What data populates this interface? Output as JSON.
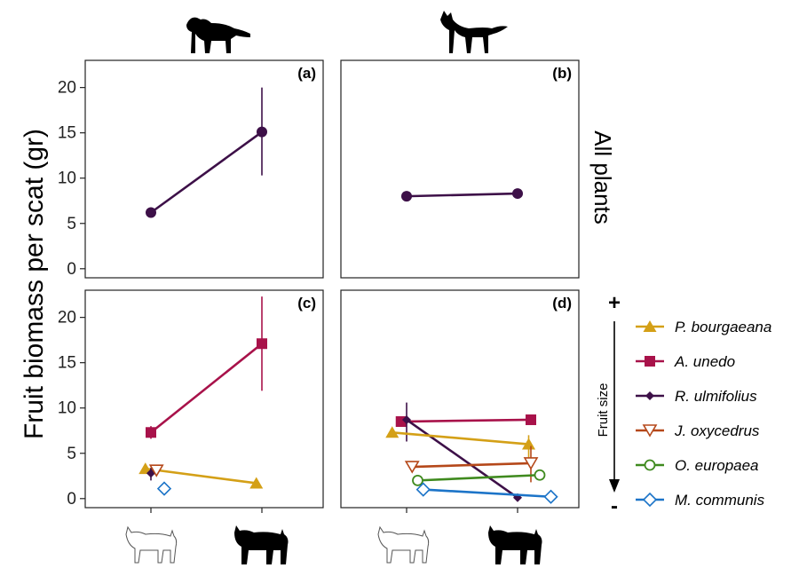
{
  "figure": {
    "y_axis_title": "Fruit biomass per scat (gr)",
    "row_label_top": "All plants",
    "fruit_size_label": "Fruit size",
    "fruit_size_plus": "+",
    "fruit_size_minus": "-",
    "icon_names": [
      "marten-silhouette-icon",
      "fox-silhouette-icon",
      "lynx-outline-icon",
      "lynx-silhouette-icon"
    ]
  },
  "chart_data": {
    "type": "line",
    "ylim": [
      -1,
      23
    ],
    "y_ticks": [
      0,
      5,
      10,
      15,
      20
    ],
    "grid": false,
    "legend_position": "right",
    "series_meta": [
      {
        "name": "P. bourgaeana",
        "color": "#d4a017",
        "marker": "triangle"
      },
      {
        "name": "A. unedo",
        "color": "#a8124a",
        "marker": "square"
      },
      {
        "name": "R. ulmifolius",
        "color": "#3d1048",
        "marker": "diamond"
      },
      {
        "name": "J. oxycedrus",
        "color": "#b5481a",
        "marker": "triangle-down-open"
      },
      {
        "name": "O. europaea",
        "color": "#3f8a1e",
        "marker": "circle-open"
      },
      {
        "name": "M. communis",
        "color": "#1c74c8",
        "marker": "diamond-open"
      }
    ],
    "panels": [
      {
        "tag": "(a)",
        "series": [
          {
            "name": "All plants",
            "color": "#3d1048",
            "marker": "circle",
            "x": [
              1,
              2
            ],
            "y": [
              6.2,
              15.1
            ],
            "err": [
              [
                6.2,
                6.2
              ],
              [
                10.3,
                20.0
              ]
            ]
          }
        ]
      },
      {
        "tag": "(b)",
        "series": [
          {
            "name": "All plants",
            "color": "#3d1048",
            "marker": "circle",
            "x": [
              1,
              2
            ],
            "y": [
              8.0,
              8.3
            ],
            "err": [
              [
                8.0,
                8.0
              ],
              [
                8.3,
                8.3
              ]
            ]
          }
        ]
      },
      {
        "tag": "(c)",
        "series": [
          {
            "name": "A. unedo",
            "x": [
              1,
              2
            ],
            "y": [
              7.3,
              17.1
            ],
            "err": [
              [
                6.6,
                8.0
              ],
              [
                11.9,
                22.3
              ]
            ]
          },
          {
            "name": "P. bourgaeana",
            "x": [
              0.95,
              1.95
            ],
            "y": [
              3.3,
              1.7
            ],
            "err": [
              [
                3.3,
                3.3
              ],
              [
                1.7,
                1.7
              ]
            ]
          },
          {
            "name": "R. ulmifolius",
            "x": [
              1.0
            ],
            "y": [
              2.8
            ],
            "err": [
              [
                2.0,
                3.4
              ]
            ]
          },
          {
            "name": "J. oxycedrus",
            "x": [
              1.05
            ],
            "y": [
              3.1
            ],
            "err": [
              [
                3.1,
                3.1
              ]
            ]
          },
          {
            "name": "M. communis",
            "x": [
              1.12
            ],
            "y": [
              1.1
            ],
            "err": [
              [
                0.7,
                1.6
              ]
            ]
          }
        ]
      },
      {
        "tag": "(d)",
        "series": [
          {
            "name": "A. unedo",
            "x": [
              0.95,
              2.12
            ],
            "y": [
              8.5,
              8.7
            ],
            "err": [
              [
                8.5,
                8.5
              ],
              [
                8.7,
                8.7
              ]
            ]
          },
          {
            "name": "R. ulmifolius",
            "x": [
              1.0,
              2.0
            ],
            "y": [
              8.7,
              0.1
            ],
            "err": [
              [
                6.3,
                10.6
              ],
              [
                0.1,
                0.1
              ]
            ]
          },
          {
            "name": "P. bourgaeana",
            "x": [
              0.87,
              2.1
            ],
            "y": [
              7.3,
              6.0
            ],
            "err": [
              [
                7.3,
                7.3
              ],
              [
                4.5,
                7.0
              ]
            ]
          },
          {
            "name": "J. oxycedrus",
            "x": [
              1.05,
              2.12
            ],
            "y": [
              3.5,
              3.9
            ],
            "err": [
              [
                3.5,
                3.5
              ],
              [
                1.8,
                5.8
              ]
            ]
          },
          {
            "name": "O. europaea",
            "x": [
              1.1,
              2.2
            ],
            "y": [
              2.0,
              2.6
            ],
            "err": [
              [
                2.0,
                2.0
              ],
              [
                2.6,
                2.6
              ]
            ]
          },
          {
            "name": "M. communis",
            "x": [
              1.15,
              2.3
            ],
            "y": [
              1.0,
              0.2
            ],
            "err": [
              [
                1.0,
                1.0
              ],
              [
                0.2,
                0.2
              ]
            ]
          }
        ]
      }
    ]
  }
}
